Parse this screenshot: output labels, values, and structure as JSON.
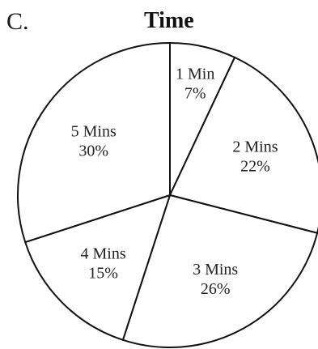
{
  "panel_label": "C.",
  "chart_data": {
    "type": "pie",
    "title": "Time",
    "slices": [
      {
        "label": "1 Min",
        "value": 7,
        "display": "7%"
      },
      {
        "label": "2 Mins",
        "value": 22,
        "display": "22%"
      },
      {
        "label": "3 Mins",
        "value": 26,
        "display": "26%"
      },
      {
        "label": "4 Mins",
        "value": 15,
        "display": "15%"
      },
      {
        "label": "5 Mins",
        "value": 30,
        "display": "30%"
      }
    ],
    "stroke_color": "#111111",
    "fill_color": "#ffffff"
  }
}
